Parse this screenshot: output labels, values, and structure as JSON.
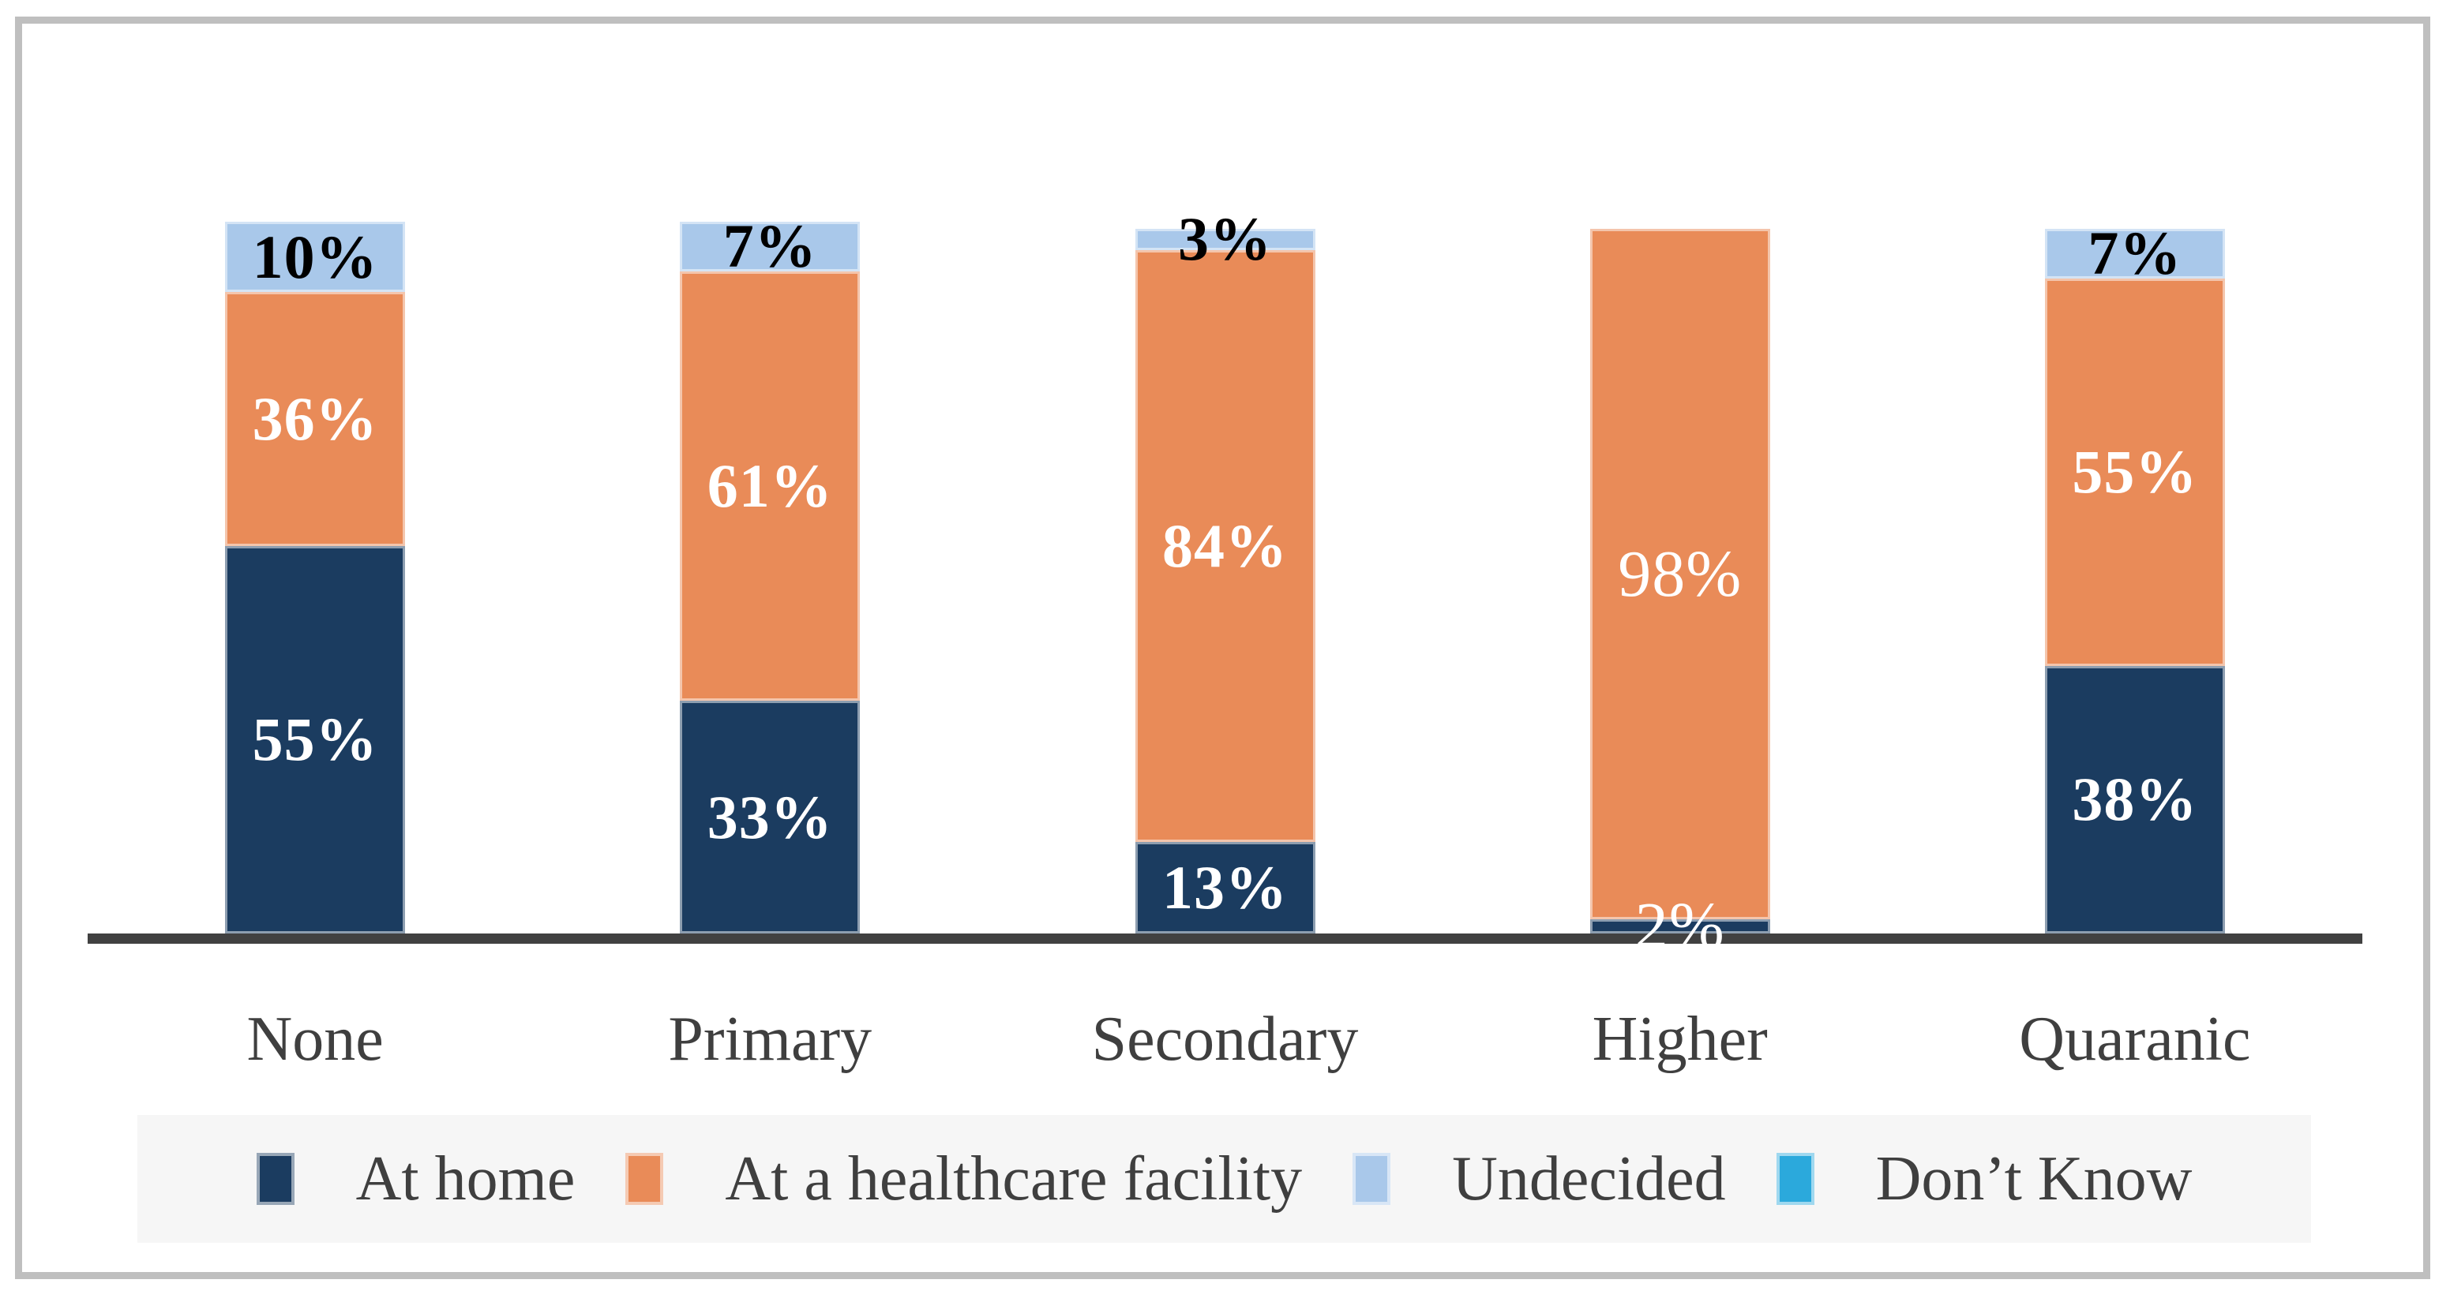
{
  "chart_data": {
    "type": "bar",
    "subtype": "stacked-column",
    "title": "",
    "xlabel": "",
    "ylabel": "",
    "value_suffix": "%",
    "ylim": [
      0,
      101
    ],
    "grid": false,
    "legend_position": "bottom",
    "categories": [
      "None",
      "Primary",
      "Secondary",
      "Higher",
      "Quaranic"
    ],
    "series": [
      {
        "name": "At home",
        "color": "#1B3C60",
        "label_color": "#FFFFFF",
        "values": [
          55,
          33,
          13,
          2,
          38
        ]
      },
      {
        "name": "At a healthcare facility",
        "color": "#E98B58",
        "label_color": "#FFFFFF",
        "values": [
          36,
          61,
          84,
          98,
          55
        ]
      },
      {
        "name": "Undecided",
        "color": "#A9C8EA",
        "label_color": "#000000",
        "values": [
          10,
          7,
          3,
          0,
          7
        ]
      },
      {
        "name": "Don’t Know",
        "color": "#2BA9DC",
        "label_color": "#000000",
        "values": [
          0,
          0,
          0,
          0,
          0
        ]
      }
    ],
    "plain_label_categories": [
      "Higher"
    ],
    "style_colors": {
      "axis_line": "#414141",
      "frame_border": "#BFBFBF",
      "legend_background": "#F6F6F6",
      "category_label": "#3F3F3F",
      "background": "#FFFFFF"
    }
  }
}
